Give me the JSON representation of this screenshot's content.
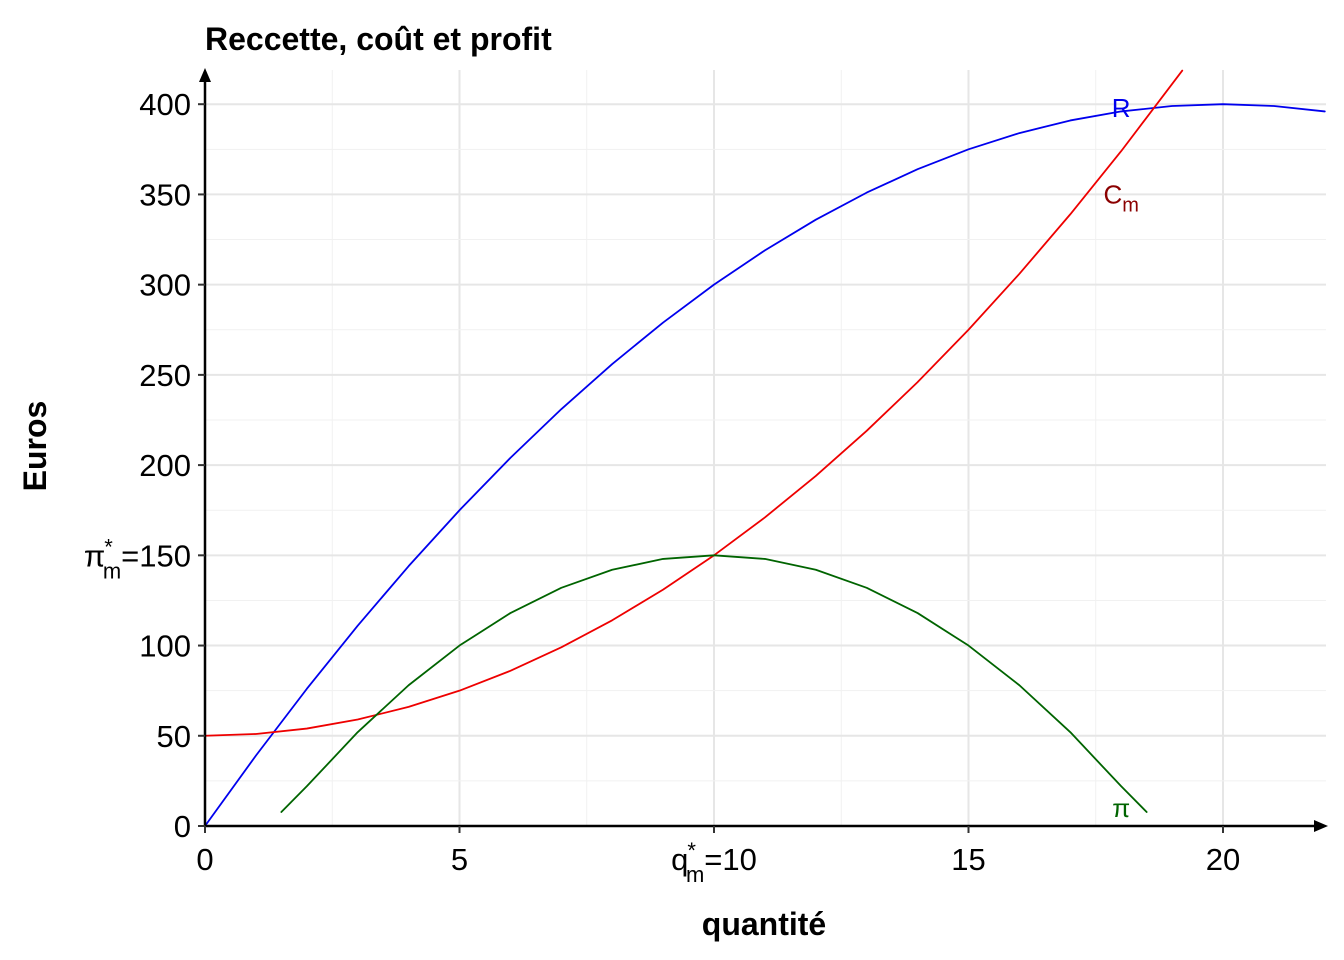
{
  "chart_data": {
    "type": "line",
    "title": "Reccette, coût et profit",
    "xlabel": "quantité",
    "ylabel": "Euros",
    "xlim": [
      0,
      22
    ],
    "ylim": [
      0,
      420
    ],
    "grid": true,
    "x_ticks": [
      {
        "value": 0,
        "label": "0"
      },
      {
        "value": 5,
        "label": "5"
      },
      {
        "value": 10,
        "label": "=10",
        "prefix": "q",
        "sub": "m",
        "sup": "*"
      },
      {
        "value": 15,
        "label": "15"
      },
      {
        "value": 20,
        "label": "20"
      }
    ],
    "y_ticks": [
      {
        "value": 0,
        "label": "0"
      },
      {
        "value": 50,
        "label": "50"
      },
      {
        "value": 100,
        "label": "100"
      },
      {
        "value": 150,
        "label": "=150",
        "prefix": "π",
        "sub": "m",
        "sup": "*"
      },
      {
        "value": 200,
        "label": "200"
      },
      {
        "value": 250,
        "label": "250"
      },
      {
        "value": 300,
        "label": "300"
      },
      {
        "value": 350,
        "label": "350"
      },
      {
        "value": 400,
        "label": "400"
      }
    ],
    "series": [
      {
        "name": "R",
        "color": "#0000ee",
        "label_at": [
          18,
          398
        ],
        "x": [
          0,
          1,
          2,
          3,
          4,
          5,
          6,
          7,
          8,
          9,
          10,
          11,
          12,
          13,
          14,
          15,
          16,
          17,
          18,
          19,
          20,
          21,
          22
        ],
        "y": [
          0,
          39,
          76,
          111,
          144,
          175,
          204,
          231,
          256,
          279,
          300,
          319,
          336,
          351,
          364,
          375,
          384,
          391,
          396,
          399,
          400,
          399,
          396
        ]
      },
      {
        "name": "C",
        "sub": "m",
        "color": "#ee0000",
        "label_color": "#8b0000",
        "label_at": [
          18,
          350
        ],
        "x": [
          0,
          1,
          2,
          3,
          4,
          5,
          6,
          7,
          8,
          9,
          10,
          11,
          12,
          13,
          14,
          15,
          16,
          17,
          18,
          19.2
        ],
        "y": [
          50,
          51,
          54,
          59,
          66,
          75,
          86,
          99,
          114,
          131,
          150,
          171,
          194,
          219,
          246,
          275,
          306,
          339,
          374,
          418.64
        ]
      },
      {
        "name": "π",
        "color": "#006400",
        "label_at": [
          18,
          10
        ],
        "x": [
          1.5,
          2,
          3,
          4,
          5,
          6,
          7,
          8,
          9,
          10,
          11,
          12,
          13,
          14,
          15,
          16,
          17,
          18,
          18.5
        ],
        "y": [
          7.75,
          22,
          52,
          78,
          100,
          118,
          132,
          142,
          148,
          150,
          148,
          142,
          132,
          118,
          100,
          78,
          52,
          22,
          7.75
        ]
      }
    ]
  }
}
